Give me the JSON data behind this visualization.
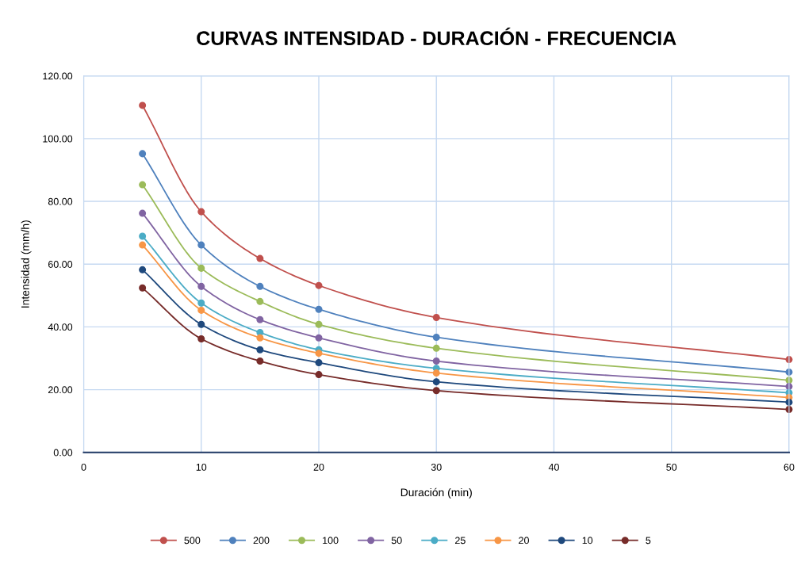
{
  "chart_data": {
    "type": "line",
    "title": "CURVAS INTENSIDAD - DURACIÓN - FRECUENCIA",
    "xlabel": "Duración (min)",
    "ylabel": "Intensidad (mm/h)",
    "x": [
      5,
      10,
      15,
      20,
      30,
      60
    ],
    "series": [
      {
        "name": "500",
        "color": "#c0504d",
        "values": [
          110.6,
          76.7,
          61.8,
          53.2,
          43.0,
          29.6
        ]
      },
      {
        "name": "200",
        "color": "#4f81bd",
        "values": [
          95.2,
          66.1,
          52.9,
          45.6,
          36.7,
          25.6
        ]
      },
      {
        "name": "100",
        "color": "#9bbb59",
        "values": [
          85.3,
          58.7,
          48.1,
          40.8,
          33.2,
          23.0
        ]
      },
      {
        "name": "50",
        "color": "#8064a2",
        "values": [
          76.2,
          52.9,
          42.3,
          36.5,
          29.1,
          21.0
        ]
      },
      {
        "name": "25",
        "color": "#4bacc6",
        "values": [
          68.9,
          47.6,
          38.2,
          32.7,
          26.8,
          19.0
        ]
      },
      {
        "name": "20",
        "color": "#f79646",
        "values": [
          66.1,
          45.3,
          36.5,
          31.6,
          25.3,
          17.5
        ]
      },
      {
        "name": "10",
        "color": "#1f497d",
        "values": [
          58.2,
          40.8,
          32.7,
          28.6,
          22.5,
          16.0
        ]
      },
      {
        "name": "5",
        "color": "#772c2a",
        "values": [
          52.4,
          36.2,
          29.1,
          24.8,
          19.7,
          13.7
        ]
      }
    ],
    "xlim": [
      0,
      60
    ],
    "xticks": [
      0,
      10,
      20,
      30,
      40,
      50,
      60
    ],
    "ylim": [
      0,
      120
    ],
    "yticks": [
      {
        "value": 0,
        "label": "0.00"
      },
      {
        "value": 20,
        "label": "20.00"
      },
      {
        "value": 40,
        "label": "40.00"
      },
      {
        "value": 60,
        "label": "60.00"
      },
      {
        "value": 80,
        "label": "80.00"
      },
      {
        "value": 100,
        "label": "100.00"
      },
      {
        "value": 120,
        "label": "120.00"
      }
    ],
    "grid": true,
    "legend": "bottom",
    "marker": "circle",
    "line_style": "solid"
  }
}
